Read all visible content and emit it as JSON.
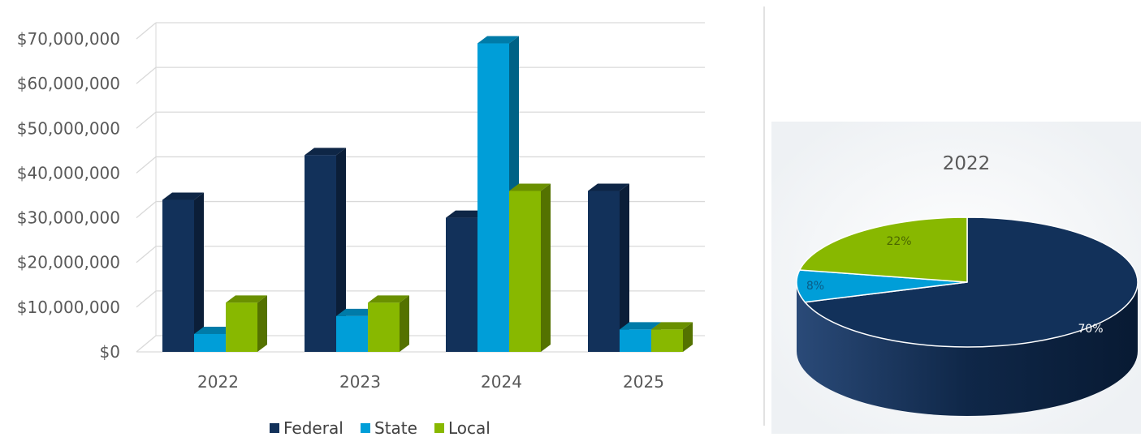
{
  "colors": {
    "federal": "#12315a",
    "state": "#009ed8",
    "local": "#88b800",
    "grid": "#d9d9d9",
    "text": "#595959"
  },
  "chart_data": [
    {
      "type": "bar",
      "categories": [
        "2022",
        "2023",
        "2024",
        "2025"
      ],
      "series": [
        {
          "name": "Federal",
          "values": [
            34000000,
            44000000,
            30000000,
            36000000
          ]
        },
        {
          "name": "State",
          "values": [
            4000000,
            8000000,
            69000000,
            5000000
          ]
        },
        {
          "name": "Local",
          "values": [
            11000000,
            11000000,
            36000000,
            5000000
          ]
        }
      ],
      "yticks": [
        "$0",
        "$10,000,000",
        "$20,000,000",
        "$30,000,000",
        "$40,000,000",
        "$50,000,000",
        "$60,000,000",
        "$70,000,000"
      ],
      "ylim": [
        0,
        70000000
      ],
      "grid": true,
      "legend_position": "bottom",
      "style": "3d-clustered-column"
    },
    {
      "type": "pie",
      "title": "2022",
      "slices": [
        {
          "label": "70%",
          "value": 70,
          "series": "Federal"
        },
        {
          "label": "8%",
          "value": 8,
          "series": "State"
        },
        {
          "label": "22%",
          "value": 22,
          "series": "Local"
        }
      ],
      "style": "3d-pie"
    }
  ]
}
